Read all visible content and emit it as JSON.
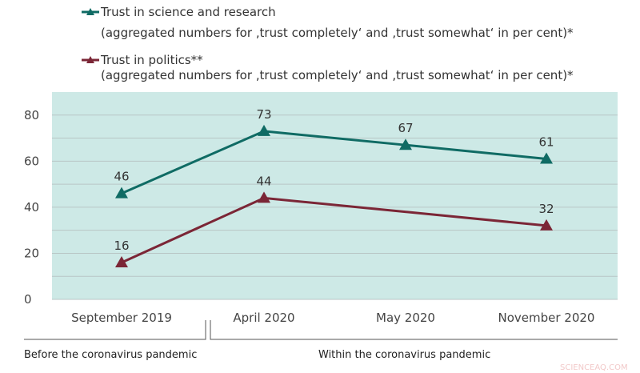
{
  "chart_data": {
    "type": "line",
    "categories": [
      "September 2019",
      "April 2020",
      "May 2020",
      "November 2020"
    ],
    "series": [
      {
        "name": "Trust in science and research",
        "note": "(aggregated numbers for ‚trust completely‘ and ‚trust somewhat‘ in per cent)*",
        "color": "#0f6b64",
        "values": [
          46,
          73,
          67,
          61
        ]
      },
      {
        "name": "Trust in politics**",
        "note": "(aggregated numbers for ‚trust completely‘ and ‚trust somewhat‘ in per cent)*",
        "color": "#7b2636",
        "values": [
          16,
          44,
          null,
          32
        ]
      }
    ],
    "ylim": [
      0,
      90
    ],
    "yticks": [
      "0",
      "20",
      "40",
      "60",
      "80"
    ],
    "grid": true,
    "plot_background": "#cde9e6",
    "legend_position": "top",
    "periods": [
      "Before the coronavirus pandemic",
      "Within the coronavirus pandemic"
    ]
  },
  "watermark": "SCIENCEAQ.COM"
}
